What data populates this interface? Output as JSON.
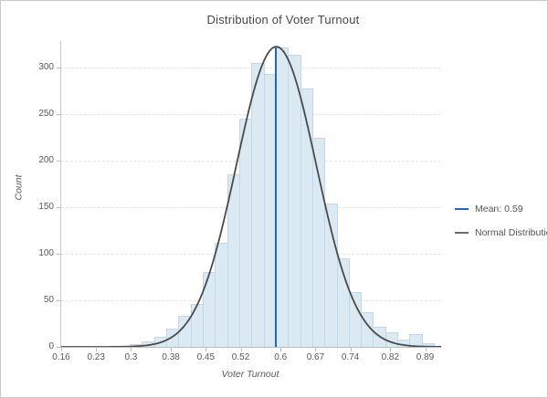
{
  "chart_data": {
    "type": "histogram",
    "title": "Distribution of Voter Turnout",
    "xlabel": "Voter Turnout",
    "ylabel": "Count",
    "x_axis": {
      "min": 0.16,
      "max": 0.922,
      "tick_values": [
        0.16,
        0.23,
        0.3,
        0.38,
        0.45,
        0.52,
        0.6,
        0.67,
        0.74,
        0.82,
        0.89
      ],
      "tick_labels": [
        "0.16",
        "0.23",
        "0.3",
        "0.38",
        "0.45",
        "0.52",
        "0.6",
        "0.67",
        "0.74",
        "0.82",
        "0.89"
      ]
    },
    "y_axis": {
      "min": 0,
      "max": 328,
      "tick_values": [
        0,
        50,
        100,
        150,
        200,
        250,
        300
      ],
      "tick_labels": [
        "0",
        "50",
        "100",
        "150",
        "200",
        "250",
        "300"
      ]
    },
    "bins": {
      "start": 0.2975,
      "width": 0.0244,
      "counts": [
        3,
        6,
        11,
        20,
        33,
        46,
        80,
        112,
        185,
        245,
        305,
        293,
        321,
        313,
        277,
        224,
        154,
        95,
        59,
        37,
        22,
        16,
        8,
        14,
        4
      ]
    },
    "mean_line": {
      "x": 0.59,
      "top_count": 322
    },
    "normal_curve": {
      "mean": 0.5915,
      "sigma": 0.08,
      "peak": 322
    },
    "legend": [
      {
        "label": "Mean: 0.59",
        "color": "#2265c4"
      },
      {
        "label": "Normal Distribution",
        "color": "#6b6b6b"
      }
    ],
    "grid": "horizontal-only",
    "legend_position": "right-middle"
  },
  "colors": {
    "bar_fill": "#dbe9f2",
    "bar_stroke": "#c0d8e7",
    "curve": "#4a4a4a",
    "mean_line": "#2265c4",
    "gridline": "#e3e3e3",
    "axis_line": "#bdbdbd",
    "tick_text": "#595959",
    "title_text": "#474747",
    "frame_border": "#c9c9c9"
  }
}
